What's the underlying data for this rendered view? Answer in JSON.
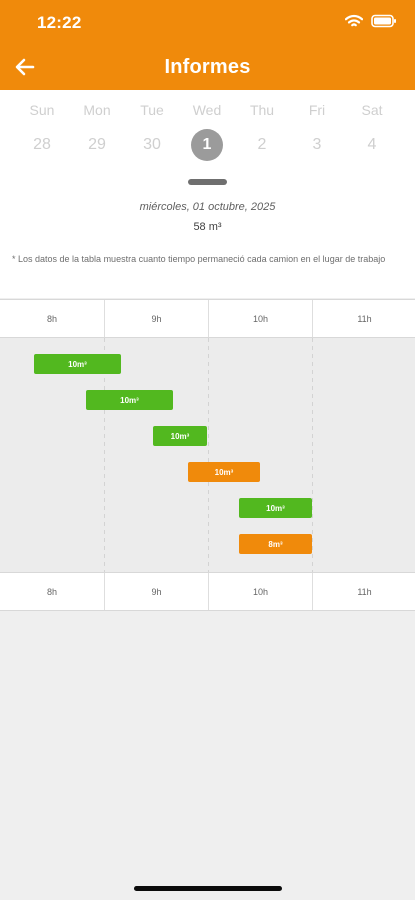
{
  "status_bar": {
    "time": "12:22"
  },
  "header": {
    "title": "Informes"
  },
  "calendar": {
    "weekdays": [
      "Sun",
      "Mon",
      "Tue",
      "Wed",
      "Thu",
      "Fri",
      "Sat"
    ],
    "days": [
      "28",
      "29",
      "30",
      "1",
      "2",
      "3",
      "4"
    ],
    "selected_day": "1",
    "date_text": "miércoles, 01 octubre, 2025",
    "total_text": "58 m³",
    "note": "*  Los datos de la tabla muestra cuanto tiempo permaneció cada camion en el lugar de trabajo"
  },
  "timeline": {
    "hours": [
      "8h",
      "9h",
      "10h",
      "11h"
    ],
    "bars": [
      {
        "label": "10m³",
        "color": "#52b81f",
        "start": 8.33,
        "end": 9.17
      },
      {
        "label": "10m³",
        "color": "#52b81f",
        "start": 8.83,
        "end": 9.67
      },
      {
        "label": "10m³",
        "color": "#52b81f",
        "start": 9.47,
        "end": 9.99
      },
      {
        "label": "10m³",
        "color": "#f08a0b",
        "start": 9.81,
        "end": 10.5
      },
      {
        "label": "10m³",
        "color": "#52b81f",
        "start": 10.3,
        "end": 11.0
      },
      {
        "label": "8m³",
        "color": "#f08a0b",
        "start": 10.3,
        "end": 11.0
      }
    ]
  },
  "colors": {
    "brand": "#f08a0b",
    "green": "#52b81f",
    "selected_circle": "#9b9b9b"
  },
  "icons": {
    "back": "back-arrow-icon",
    "wifi": "wifi-icon",
    "battery": "battery-icon"
  }
}
